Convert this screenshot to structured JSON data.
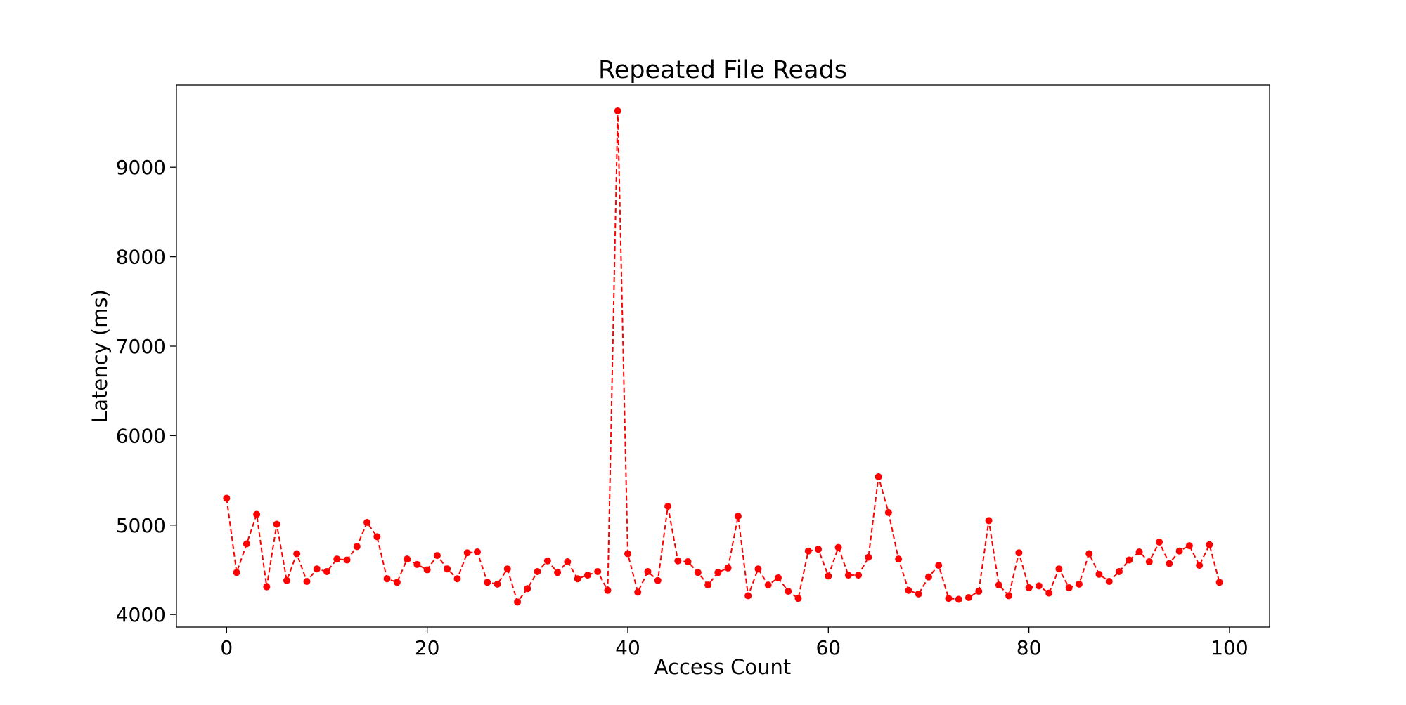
{
  "chart_data": {
    "type": "line",
    "title": "Repeated File Reads",
    "xlabel": "Access Count",
    "ylabel": "Latency (ms)",
    "xlim": [
      -5,
      104
    ],
    "ylim": [
      3860,
      9920
    ],
    "xticks": [
      0,
      20,
      40,
      60,
      80,
      100
    ],
    "xtick_labels": [
      "0",
      "20",
      "40",
      "60",
      "80",
      "100"
    ],
    "yticks": [
      4000,
      5000,
      6000,
      7000,
      8000,
      9000
    ],
    "ytick_labels": [
      "4000",
      "5000",
      "6000",
      "7000",
      "8000",
      "9000"
    ],
    "grid": false,
    "line_style": "dashed",
    "marker": "circle",
    "color": "#ff0000",
    "series": [
      {
        "x": [
          0,
          1,
          2,
          3,
          4,
          5,
          6,
          7,
          8,
          9,
          10,
          11,
          12,
          13,
          14,
          15,
          16,
          17,
          18,
          19,
          20,
          21,
          22,
          23,
          24,
          25,
          26,
          27,
          28,
          29,
          30,
          31,
          32,
          33,
          34,
          35,
          36,
          37,
          38,
          39,
          40,
          41,
          42,
          43,
          44,
          45,
          46,
          47,
          48,
          49,
          50,
          51,
          52,
          53,
          54,
          55,
          56,
          57,
          58,
          59,
          60,
          61,
          62,
          63,
          64,
          65,
          66,
          67,
          68,
          69,
          70,
          71,
          72,
          73,
          74,
          75,
          76,
          77,
          78,
          79,
          80,
          81,
          82,
          83,
          84,
          85,
          86,
          87,
          88,
          89,
          90,
          91,
          92,
          93,
          94,
          95,
          96,
          97,
          98,
          99
        ],
        "values": [
          5300,
          4470,
          4790,
          5120,
          4310,
          5010,
          4380,
          4680,
          4370,
          4510,
          4480,
          4620,
          4610,
          4760,
          5030,
          4870,
          4400,
          4360,
          4620,
          4560,
          4500,
          4660,
          4510,
          4400,
          4690,
          4700,
          4360,
          4340,
          4510,
          4140,
          4290,
          4480,
          4600,
          4470,
          4590,
          4400,
          4440,
          4480,
          4270,
          9630,
          4680,
          4250,
          4480,
          4380,
          5210,
          4600,
          4590,
          4470,
          4330,
          4470,
          4520,
          5100,
          4210,
          4510,
          4330,
          4410,
          4260,
          4180,
          4710,
          4730,
          4430,
          4750,
          4440,
          4440,
          4640,
          5540,
          5140,
          4620,
          4270,
          4230,
          4420,
          4550,
          4180,
          4170,
          4190,
          4260,
          5050,
          4330,
          4210,
          4690,
          4300,
          4320,
          4240,
          4510,
          4300,
          4340,
          4680,
          4450,
          4370,
          4480,
          4610,
          4700,
          4590,
          4810,
          4570,
          4710,
          4770,
          4550,
          4780,
          4360
        ]
      }
    ]
  }
}
